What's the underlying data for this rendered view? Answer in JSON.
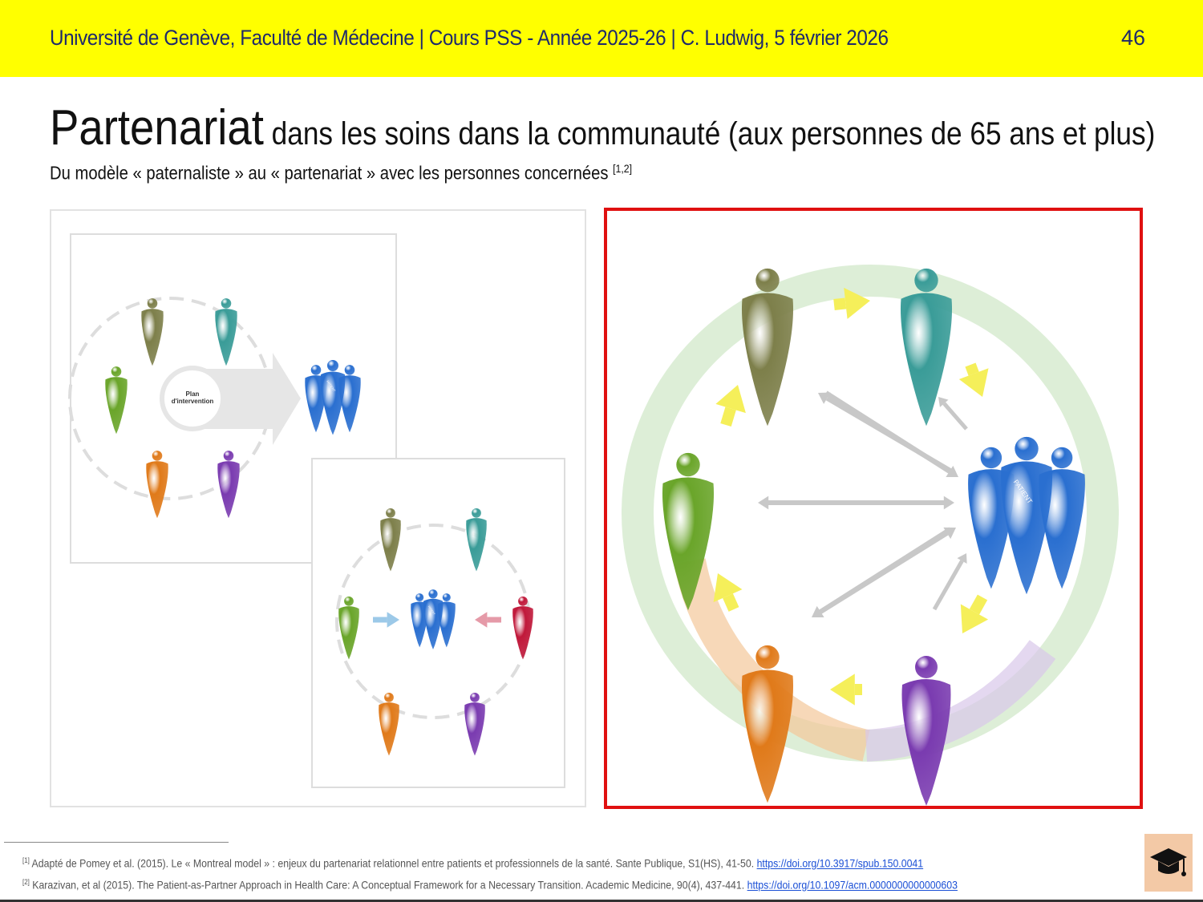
{
  "header": {
    "text": "Université de Genève, Faculté de Médecine  |  Cours PSS - Année 2025-26  |  C. Ludwig, 5 février 2026",
    "page_number": "46",
    "background": "#ffff00"
  },
  "title": {
    "main": "Partenariat",
    "rest": " dans les soins dans la communauté (aux personnes de 65 ans et plus)"
  },
  "subtitle": {
    "text": "Du modèle « paternaliste » au « partenariat » avec les personnes concernées ",
    "ref": "[1,2]"
  },
  "figures": {
    "plan_label_line1": "Plan",
    "plan_label_line2": "d'intervention",
    "patient_sash": "PATIENT",
    "colors": {
      "olive": "#7d7f4a",
      "teal": "#3a9c98",
      "green": "#6aa52a",
      "orange": "#e07a1a",
      "purple": "#7a3bb0",
      "red": "#c0183a",
      "blue": "#2a6fd0",
      "highlight_border": "#e01010"
    }
  },
  "footnotes": [
    {
      "ref": "[1]",
      "text": " Adapté de Pomey et al. (2015). Le « Montreal model » : enjeux du partenariat relationnel entre patients et professionnels de la santé. Sante Publique, S1(HS), 41-50. ",
      "link": "https://doi.org/10.3917/spub.150.0041"
    },
    {
      "ref": "[2]",
      "text": " Karazivan, et al (2015). The Patient-as-Partner Approach in Health Care: A Conceptual Framework for a Necessary Transition. Academic Medicine, 90(4), 437-441. ",
      "link": "https://doi.org/10.1097/acm.0000000000000603"
    }
  ],
  "corner_icon": "graduation-cap-icon"
}
